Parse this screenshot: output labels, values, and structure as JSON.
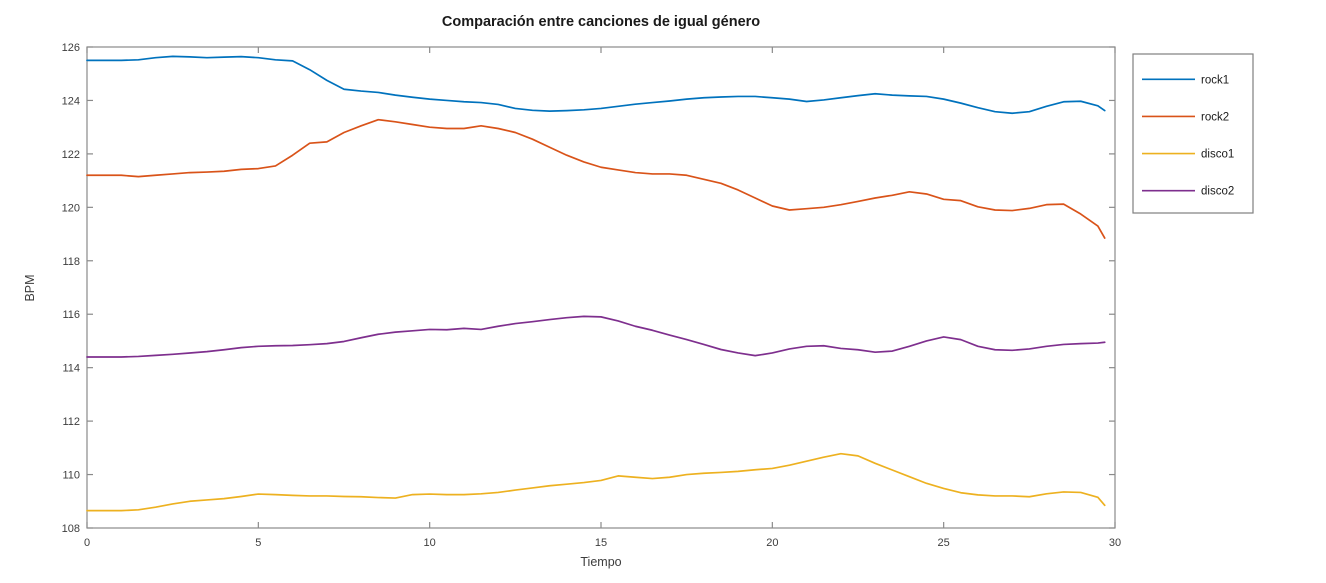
{
  "figure": {
    "title": "Comparación entre canciones de igual género",
    "background": "#ffffff"
  },
  "colors": {
    "axis": "#8a8a8a",
    "tick_text": "#3d3d3d",
    "title_text": "#1a1a1a",
    "axis_label_text": "#3d3d3d",
    "legend_border": "#7f7f7f",
    "legend_background": "#ffffff"
  },
  "chart_data": {
    "type": "line",
    "title": "Comparación entre canciones de igual género",
    "xlabel": "Tiempo",
    "ylabel": "BPM",
    "xlim": [
      0,
      30
    ],
    "ylim": [
      108,
      126
    ],
    "xticks": [
      0,
      5,
      10,
      15,
      20,
      25,
      30
    ],
    "yticks": [
      108,
      110,
      112,
      114,
      116,
      118,
      120,
      122,
      124,
      126
    ],
    "grid": false,
    "box": true,
    "tick_direction": "in",
    "legend_position": "outside-top-right",
    "x": [
      0,
      0.5,
      1,
      1.5,
      2,
      2.5,
      3,
      3.5,
      4,
      4.5,
      5,
      5.5,
      6,
      6.5,
      7,
      7.5,
      8,
      8.5,
      9,
      9.5,
      10,
      10.5,
      11,
      11.5,
      12,
      12.5,
      13,
      13.5,
      14,
      14.5,
      15,
      15.5,
      16,
      16.5,
      17,
      17.5,
      18,
      18.5,
      19,
      19.5,
      20,
      20.5,
      21,
      21.5,
      22,
      22.5,
      23,
      23.5,
      24,
      24.5,
      25,
      25.5,
      26,
      26.5,
      27,
      27.5,
      28,
      28.5,
      29,
      29.5,
      29.7
    ],
    "series": [
      {
        "name": "rock1",
        "color": "#0072BD",
        "values": [
          125.5,
          125.5,
          125.5,
          125.52,
          125.6,
          125.65,
          125.63,
          125.6,
          125.62,
          125.64,
          125.6,
          125.52,
          125.48,
          125.15,
          124.75,
          124.42,
          124.35,
          124.3,
          124.2,
          124.12,
          124.05,
          124.0,
          123.95,
          123.92,
          123.85,
          123.7,
          123.63,
          123.6,
          123.62,
          123.65,
          123.7,
          123.78,
          123.86,
          123.92,
          123.98,
          124.05,
          124.1,
          124.13,
          124.15,
          124.15,
          124.1,
          124.05,
          123.96,
          124.02,
          124.1,
          124.18,
          124.25,
          124.2,
          124.17,
          124.15,
          124.05,
          123.9,
          123.73,
          123.58,
          123.52,
          123.58,
          123.78,
          123.95,
          123.97,
          123.8,
          123.62
        ]
      },
      {
        "name": "rock2",
        "color": "#D95319",
        "values": [
          121.2,
          121.2,
          121.2,
          121.15,
          121.2,
          121.25,
          121.3,
          121.32,
          121.35,
          121.42,
          121.45,
          121.55,
          121.95,
          122.4,
          122.45,
          122.8,
          123.05,
          123.28,
          123.2,
          123.1,
          123.0,
          122.95,
          122.95,
          123.05,
          122.95,
          122.8,
          122.55,
          122.25,
          121.95,
          121.7,
          121.5,
          121.4,
          121.3,
          121.25,
          121.25,
          121.2,
          121.05,
          120.9,
          120.65,
          120.35,
          120.05,
          119.9,
          119.95,
          120.0,
          120.1,
          120.22,
          120.35,
          120.45,
          120.58,
          120.5,
          120.3,
          120.25,
          120.02,
          119.9,
          119.88,
          119.96,
          120.1,
          120.12,
          119.75,
          119.3,
          118.85
        ]
      },
      {
        "name": "disco1",
        "color": "#EDB120",
        "values": [
          108.65,
          108.65,
          108.65,
          108.68,
          108.78,
          108.9,
          109.0,
          109.05,
          109.1,
          109.18,
          109.27,
          109.25,
          109.22,
          109.2,
          109.2,
          109.18,
          109.17,
          109.14,
          109.12,
          109.25,
          109.27,
          109.25,
          109.25,
          109.28,
          109.33,
          109.42,
          109.5,
          109.58,
          109.64,
          109.7,
          109.78,
          109.95,
          109.9,
          109.85,
          109.9,
          110.0,
          110.05,
          110.08,
          110.12,
          110.18,
          110.23,
          110.35,
          110.5,
          110.65,
          110.78,
          110.7,
          110.42,
          110.17,
          109.92,
          109.67,
          109.48,
          109.32,
          109.24,
          109.2,
          109.2,
          109.17,
          109.28,
          109.35,
          109.33,
          109.15,
          108.85
        ]
      },
      {
        "name": "disco2",
        "color": "#7E2F8E",
        "values": [
          114.4,
          114.4,
          114.4,
          114.42,
          114.46,
          114.5,
          114.55,
          114.6,
          114.67,
          114.75,
          114.8,
          114.82,
          114.83,
          114.86,
          114.9,
          114.98,
          115.12,
          115.25,
          115.33,
          115.38,
          115.43,
          115.42,
          115.47,
          115.43,
          115.55,
          115.65,
          115.72,
          115.8,
          115.87,
          115.92,
          115.9,
          115.75,
          115.55,
          115.4,
          115.22,
          115.05,
          114.87,
          114.68,
          114.55,
          114.45,
          114.55,
          114.7,
          114.8,
          114.82,
          114.72,
          114.67,
          114.58,
          114.62,
          114.8,
          115.0,
          115.15,
          115.05,
          114.8,
          114.67,
          114.65,
          114.7,
          114.8,
          114.87,
          114.9,
          114.92,
          114.95
        ]
      }
    ]
  }
}
